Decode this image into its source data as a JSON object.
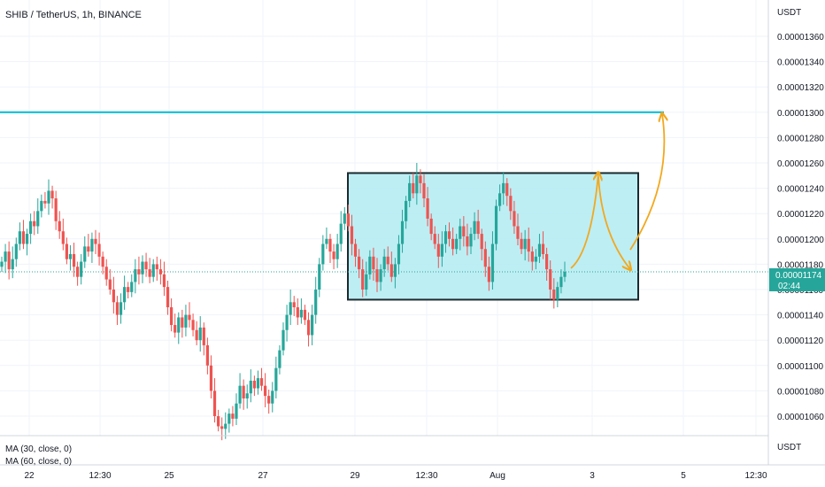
{
  "header": {
    "symbol": "SHIB / TetherUS, 1h, BINANCE"
  },
  "price_scale": {
    "currency": "USDT",
    "ticks": [
      "0.00001360",
      "0.00001340",
      "0.00001320",
      "0.00001300",
      "0.00001280",
      "0.00001260",
      "0.00001240",
      "0.00001220",
      "0.00001200",
      "0.00001180",
      "0.00001160",
      "0.00001140",
      "0.00001120",
      "0.00001100",
      "0.00001080",
      "0.00001060"
    ],
    "last_price": "0.00001174",
    "countdown": "02:44"
  },
  "indicator_pane": {
    "currency": "USDT",
    "legend": [
      "MA (30, close, 0)",
      "MA (60, close, 0)"
    ]
  },
  "time_axis": {
    "ticks": [
      "22",
      "12:30",
      "25",
      "27",
      "29",
      "12:30",
      "Aug",
      "3",
      "5",
      "12:30"
    ]
  },
  "colors": {
    "up": "#26a69a",
    "down": "#ef5350",
    "resistance_line": "#00bcd4",
    "range_fill": "#b2ebf2",
    "range_border": "#1b2a2f",
    "arrow": "#f2a81d",
    "last_price_bg": "#26a69a"
  },
  "chart_data": {
    "type": "candlestick",
    "symbol": "SHIB/USDT",
    "interval": "1h",
    "ylim": [
      1.05e-05,
      1.37e-05
    ],
    "resistance_level": 1.3e-05,
    "range_box": {
      "high": 1.252e-05,
      "low": 1.152e-05
    },
    "last_price": 1.174e-05,
    "projection_points": [
      1.174e-05,
      1.252e-05,
      1.176e-05,
      1.3e-05
    ],
    "closes": [
      1.182e-05,
      1.19e-05,
      1.176e-05,
      1.184e-05,
      1.196e-05,
      1.206e-05,
      1.196e-05,
      1.204e-05,
      1.214e-05,
      1.21e-05,
      1.222e-05,
      1.23e-05,
      1.228e-05,
      1.238e-05,
      1.232e-05,
      1.214e-05,
      1.206e-05,
      1.196e-05,
      1.184e-05,
      1.188e-05,
      1.178e-05,
      1.17e-05,
      1.182e-05,
      1.194e-05,
      1.19e-05,
      1.2e-05,
      1.196e-05,
      1.186e-05,
      1.178e-05,
      1.168e-05,
      1.16e-05,
      1.15e-05,
      1.14e-05,
      1.15e-05,
      1.162e-05,
      1.158e-05,
      1.166e-05,
      1.176e-05,
      1.172e-05,
      1.182e-05,
      1.176e-05,
      1.17e-05,
      1.18e-05,
      1.176e-05,
      1.172e-05,
      1.162e-05,
      1.146e-05,
      1.132e-05,
      1.126e-05,
      1.138e-05,
      1.13e-05,
      1.14e-05,
      1.136e-05,
      1.128e-05,
      1.12e-05,
      1.13e-05,
      1.116e-05,
      1.1e-05,
      1.08e-05,
      1.06e-05,
      1.052e-05,
      1.05e-05,
      1.054e-05,
      1.062e-05,
      1.058e-05,
      1.07e-05,
      1.084e-05,
      1.074e-05,
      1.078e-05,
      1.088e-05,
      1.082e-05,
      1.09e-05,
      1.084e-05,
      1.076e-05,
      1.07e-05,
      1.08e-05,
      1.098e-05,
      1.112e-05,
      1.128e-05,
      1.14e-05,
      1.15e-05,
      1.146e-05,
      1.138e-05,
      1.144e-05,
      1.136e-05,
      1.124e-05,
      1.14e-05,
      1.16e-05,
      1.18e-05,
      1.196e-05,
      1.2e-05,
      1.19e-05,
      1.184e-05,
      1.196e-05,
      1.212e-05,
      1.22e-05,
      1.21e-05,
      1.196e-05,
      1.186e-05,
      1.176e-05,
      1.16e-05,
      1.172e-05,
      1.186e-05,
      1.176e-05,
      1.166e-05,
      1.176e-05,
      1.186e-05,
      1.18e-05,
      1.17e-05,
      1.18e-05,
      1.196e-05,
      1.214e-05,
      1.23e-05,
      1.244e-05,
      1.236e-05,
      1.25e-05,
      1.244e-05,
      1.232e-05,
      1.216e-05,
      1.204e-05,
      1.196e-05,
      1.186e-05,
      1.196e-05,
      1.206e-05,
      1.2e-05,
      1.192e-05,
      1.2e-05,
      1.21e-05,
      1.202e-05,
      1.194e-05,
      1.204e-05,
      1.214e-05,
      1.204e-05,
      1.192e-05,
      1.178e-05,
      1.166e-05,
      1.196e-05,
      1.226e-05,
      1.236e-05,
      1.244e-05,
      1.234e-05,
      1.222e-05,
      1.21e-05,
      1.2e-05,
      1.192e-05,
      1.2e-05,
      1.19e-05,
      1.182e-05,
      1.186e-05,
      1.196e-05,
      1.188e-05,
      1.176e-05,
      1.16e-05,
      1.152e-05,
      1.162e-05,
      1.17e-05,
      1.174e-05
    ]
  }
}
